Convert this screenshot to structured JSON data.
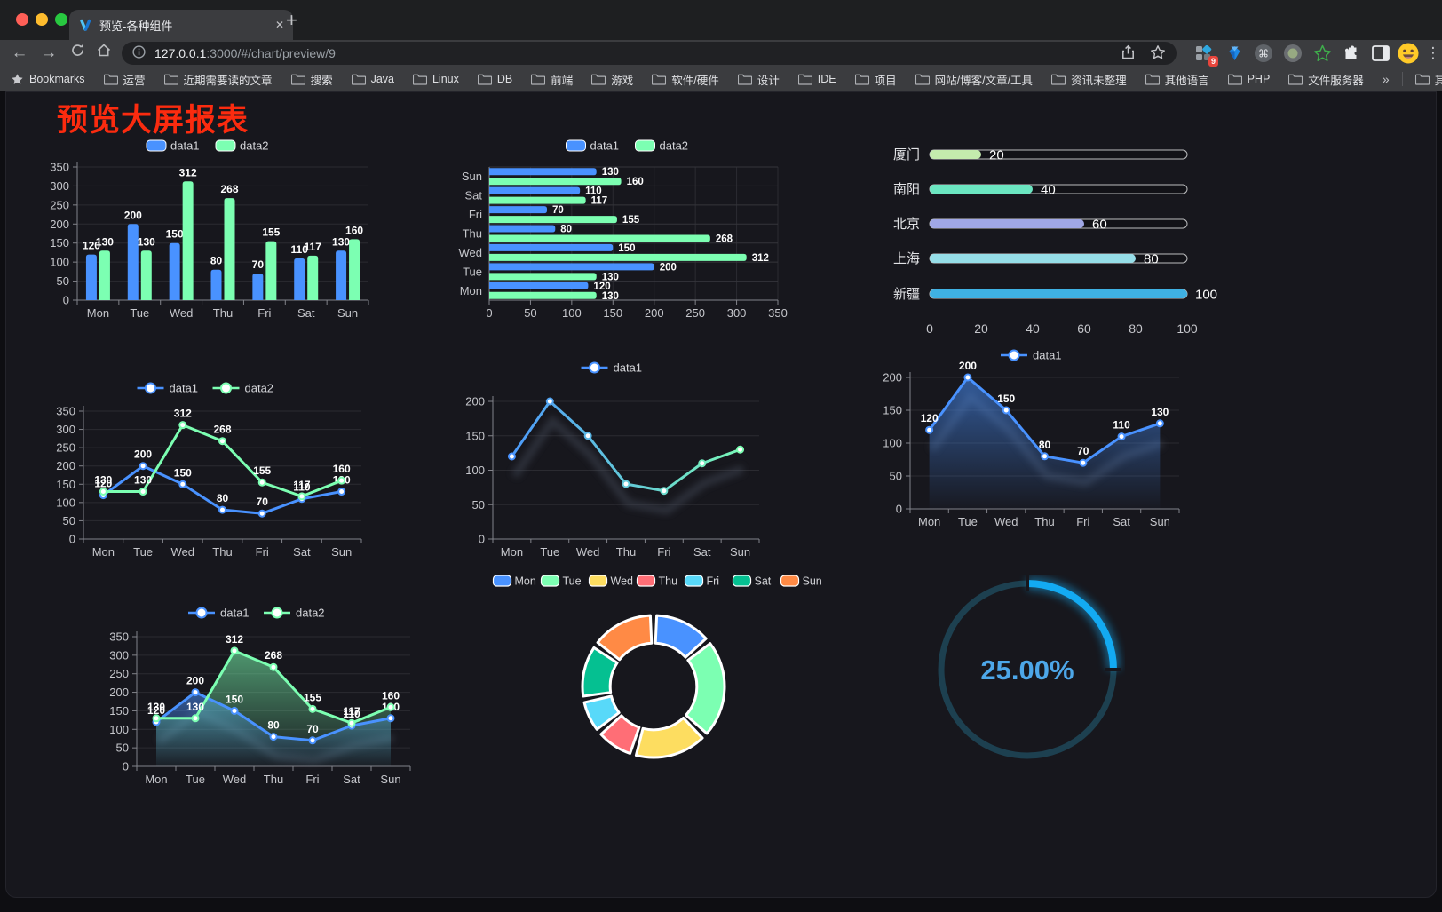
{
  "browser": {
    "tab": {
      "title": "预览-各种组件",
      "close_glyph": "✕"
    },
    "new_tab_glyph": "+",
    "nav": {
      "back": "←",
      "forward": "→"
    },
    "url": {
      "host": "127.0.0.1",
      "rest": ":3000/#/chart/preview/9"
    },
    "extensions_badge": "9",
    "bookmarks": {
      "star_label": "Bookmarks",
      "folders": [
        "运营",
        "近期需要读的文章",
        "搜索",
        "Java",
        "Linux",
        "DB",
        "前端",
        "游戏",
        "软件/硬件",
        "设计",
        "IDE",
        "项目",
        "网站/博客/文章/工具",
        "资讯未整理",
        "其他语言",
        "PHP",
        "文件服务器"
      ],
      "overflow": "»",
      "other": "其他书签"
    }
  },
  "page": {
    "title": "预览大屏报表",
    "title_color": "#fb2b0f"
  },
  "palette": {
    "blue": "#4992ff",
    "green": "#7cffb2",
    "yellow": "#fddd60",
    "red": "#ff6e76",
    "cyan": "#58d9f9",
    "teal": "#05c091",
    "orange": "#ff8a45"
  },
  "chart_data": [
    {
      "id": "bar_vertical",
      "type": "bar",
      "orientation": "vertical",
      "categories": [
        "Mon",
        "Tue",
        "Wed",
        "Thu",
        "Fri",
        "Sat",
        "Sun"
      ],
      "series": [
        {
          "name": "data1",
          "color": "#4992ff",
          "values": [
            120,
            200,
            150,
            80,
            70,
            110,
            130
          ]
        },
        {
          "name": "data2",
          "color": "#7cffb2",
          "values": [
            130,
            130,
            312,
            268,
            155,
            117,
            160
          ]
        }
      ],
      "ylim": [
        0,
        350
      ],
      "ytick": 50,
      "legend_position": "top",
      "value_labels": true
    },
    {
      "id": "bar_horizontal",
      "type": "bar",
      "orientation": "horizontal",
      "categories": [
        "Mon",
        "Tue",
        "Wed",
        "Thu",
        "Fri",
        "Sat",
        "Sun"
      ],
      "category_axis_order": "Mon-at-bottom",
      "series": [
        {
          "name": "data1",
          "color": "#4992ff",
          "values": [
            120,
            200,
            150,
            80,
            70,
            110,
            130
          ]
        },
        {
          "name": "data2",
          "color": "#7cffb2",
          "values": [
            130,
            130,
            312,
            268,
            155,
            117,
            160
          ]
        }
      ],
      "xlim": [
        0,
        350
      ],
      "xtick": 50,
      "legend_position": "top",
      "value_labels": true
    },
    {
      "id": "capsule",
      "type": "bar",
      "subtype": "capsule-progress",
      "categories": [
        "厦门",
        "南阳",
        "北京",
        "上海",
        "新疆"
      ],
      "values": [
        20,
        40,
        60,
        80,
        100
      ],
      "colors": [
        "#c4ebad",
        "#6be6c1",
        "#a0a7e6",
        "#96dee8",
        "#3fb1e3"
      ],
      "xlim": [
        0,
        100
      ],
      "xticks": [
        0,
        20,
        40,
        60,
        80,
        100
      ],
      "value_labels": true
    },
    {
      "id": "line_dual",
      "type": "line",
      "categories": [
        "Mon",
        "Tue",
        "Wed",
        "Thu",
        "Fri",
        "Sat",
        "Sun"
      ],
      "series": [
        {
          "name": "data1",
          "color": "#4992ff",
          "values": [
            120,
            200,
            150,
            80,
            70,
            110,
            130
          ]
        },
        {
          "name": "data2",
          "color": "#7cffb2",
          "values": [
            130,
            130,
            312,
            268,
            155,
            117,
            160
          ]
        }
      ],
      "ylim": [
        0,
        350
      ],
      "ytick": 50,
      "legend_position": "top",
      "value_labels": true
    },
    {
      "id": "line_gradient",
      "type": "line",
      "categories": [
        "Mon",
        "Tue",
        "Wed",
        "Thu",
        "Fri",
        "Sat",
        "Sun"
      ],
      "series": [
        {
          "name": "data1",
          "gradient": [
            "#4992ff",
            "#7cffb2"
          ],
          "values": [
            120,
            200,
            150,
            80,
            70,
            110,
            130
          ]
        }
      ],
      "ylim": [
        0,
        200
      ],
      "ytick": 50,
      "legend_position": "top",
      "value_labels": false,
      "shadow": true
    },
    {
      "id": "line_area_blue",
      "type": "area",
      "categories": [
        "Mon",
        "Tue",
        "Wed",
        "Thu",
        "Fri",
        "Sat",
        "Sun"
      ],
      "series": [
        {
          "name": "data1",
          "color": "#4992ff",
          "values": [
            120,
            200,
            150,
            80,
            70,
            110,
            130
          ]
        }
      ],
      "ylim": [
        0,
        200
      ],
      "ytick": 50,
      "legend_position": "top",
      "value_labels": true,
      "shadow": true
    },
    {
      "id": "line_dual_area",
      "type": "area",
      "categories": [
        "Mon",
        "Tue",
        "Wed",
        "Thu",
        "Fri",
        "Sat",
        "Sun"
      ],
      "series": [
        {
          "name": "data1",
          "color": "#4992ff",
          "values": [
            120,
            200,
            150,
            80,
            70,
            110,
            130
          ]
        },
        {
          "name": "data2",
          "color": "#7cffb2",
          "values": [
            130,
            130,
            312,
            268,
            155,
            117,
            160
          ]
        }
      ],
      "ylim": [
        0,
        350
      ],
      "ytick": 50,
      "legend_position": "top",
      "value_labels": true,
      "shadow": true
    },
    {
      "id": "donut",
      "type": "pie",
      "inner_radius_ratio": 0.61,
      "categories": [
        "Mon",
        "Tue",
        "Wed",
        "Thu",
        "Fri",
        "Sat",
        "Sun"
      ],
      "values": [
        120,
        200,
        150,
        80,
        70,
        110,
        130
      ],
      "colors": [
        "#4992ff",
        "#7cffb2",
        "#fddd60",
        "#ff6e76",
        "#58d9f9",
        "#05c091",
        "#ff8a45"
      ],
      "legend_position": "top"
    },
    {
      "id": "gauge",
      "type": "gauge",
      "value": 25,
      "max": 100,
      "label": "25.00%",
      "progress_color": "#13aaf2",
      "track_color": "#1d4050",
      "text_color": "#4da7e9"
    }
  ]
}
